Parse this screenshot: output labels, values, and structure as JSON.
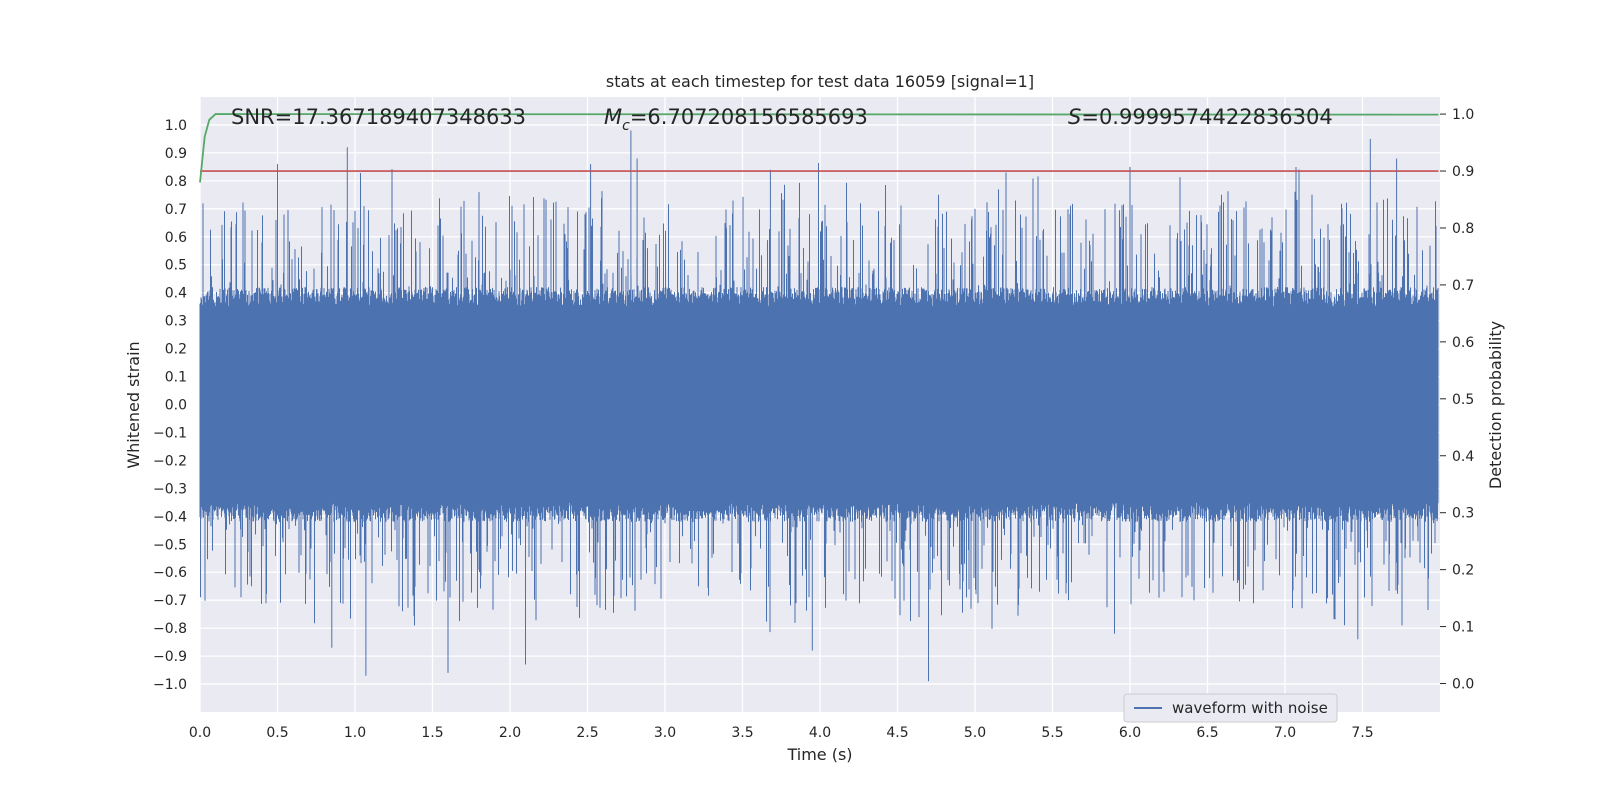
{
  "chart_data": {
    "type": "line",
    "title": "stats at each timestep for test data 16059 [signal=1]",
    "xlabel": "Time (s)",
    "ylabel": "Whitened strain",
    "y2label": "Detection probability",
    "xlim": [
      0.0,
      8.0
    ],
    "ylim": [
      -1.1,
      1.1
    ],
    "y2lim": [
      -0.05,
      1.03
    ],
    "xticks": [
      0.0,
      0.5,
      1.0,
      1.5,
      2.0,
      2.5,
      3.0,
      3.5,
      4.0,
      4.5,
      5.0,
      5.5,
      6.0,
      6.5,
      7.0,
      7.5
    ],
    "xtick_labels": [
      "0.0",
      "0.5",
      "1.0",
      "1.5",
      "2.0",
      "2.5",
      "3.0",
      "3.5",
      "4.0",
      "4.5",
      "5.0",
      "5.5",
      "6.0",
      "6.5",
      "7.0",
      "7.5"
    ],
    "yticks": [
      1.0,
      0.9,
      0.8,
      0.7,
      0.6,
      0.5,
      0.4,
      0.3,
      0.2,
      0.1,
      0.0,
      -0.1,
      -0.2,
      -0.3,
      -0.4,
      -0.5,
      -0.6,
      -0.7,
      -0.8,
      -0.9,
      -1.0
    ],
    "ytick_labels": [
      "1.0",
      "0.9",
      "0.8",
      "0.7",
      "0.6",
      "0.5",
      "0.4",
      "0.3",
      "0.2",
      "0.1",
      "0.0",
      "−0.1",
      "−0.2",
      "−0.3",
      "−0.4",
      "−0.5",
      "−0.6",
      "−0.7",
      "−0.8",
      "−0.9",
      "−1.0"
    ],
    "y2ticks": [
      1.0,
      0.9,
      0.8,
      0.7,
      0.6,
      0.5,
      0.4,
      0.3,
      0.2,
      0.1,
      0.0
    ],
    "y2tick_labels": [
      "1.0",
      "0.9",
      "0.8",
      "0.7",
      "0.6",
      "0.5",
      "0.4",
      "0.3",
      "0.2",
      "0.1",
      "0.0"
    ],
    "annotations": {
      "snr": "SNR=17.367189407348633",
      "mc_symbol": "M",
      "mc_subscript": "c",
      "mc_value": "=6.707208156585693",
      "s_symbol": "S",
      "s_value": "=0.9999574422836304"
    },
    "legend": {
      "position": "lower-right",
      "entries": [
        "waveform with noise"
      ]
    },
    "series": [
      {
        "name": "waveform with noise",
        "axis": "left",
        "color": "#4c72b0",
        "kind": "noise",
        "duration_s": 7.99,
        "core_amplitude": 0.35,
        "peaks": [
          [
            0.5,
            0.86
          ],
          [
            0.95,
            0.92
          ],
          [
            2.52,
            0.86
          ],
          [
            2.78,
            0.98
          ],
          [
            2.82,
            0.88
          ],
          [
            3.68,
            0.84
          ],
          [
            5.2,
            0.83
          ],
          [
            6.0,
            0.85
          ],
          [
            7.55,
            0.95
          ],
          [
            7.72,
            0.88
          ],
          [
            1.07,
            -0.97
          ],
          [
            1.6,
            -0.96
          ],
          [
            2.1,
            -0.93
          ],
          [
            3.95,
            -0.88
          ],
          [
            4.7,
            -0.99
          ],
          [
            0.85,
            -0.87
          ],
          [
            7.47,
            -0.84
          ],
          [
            5.9,
            -0.82
          ]
        ]
      },
      {
        "name": "detection probability",
        "axis": "right",
        "color": "#55a868",
        "x": [
          0.0,
          0.03,
          0.06,
          0.1,
          0.2,
          7.99
        ],
        "y": [
          0.88,
          0.96,
          0.99,
          1.0,
          1.0,
          0.999
        ]
      },
      {
        "name": "threshold",
        "axis": "right",
        "color": "#c44e52",
        "x": [
          0.0,
          7.99
        ],
        "y": [
          0.9,
          0.9
        ]
      }
    ]
  }
}
